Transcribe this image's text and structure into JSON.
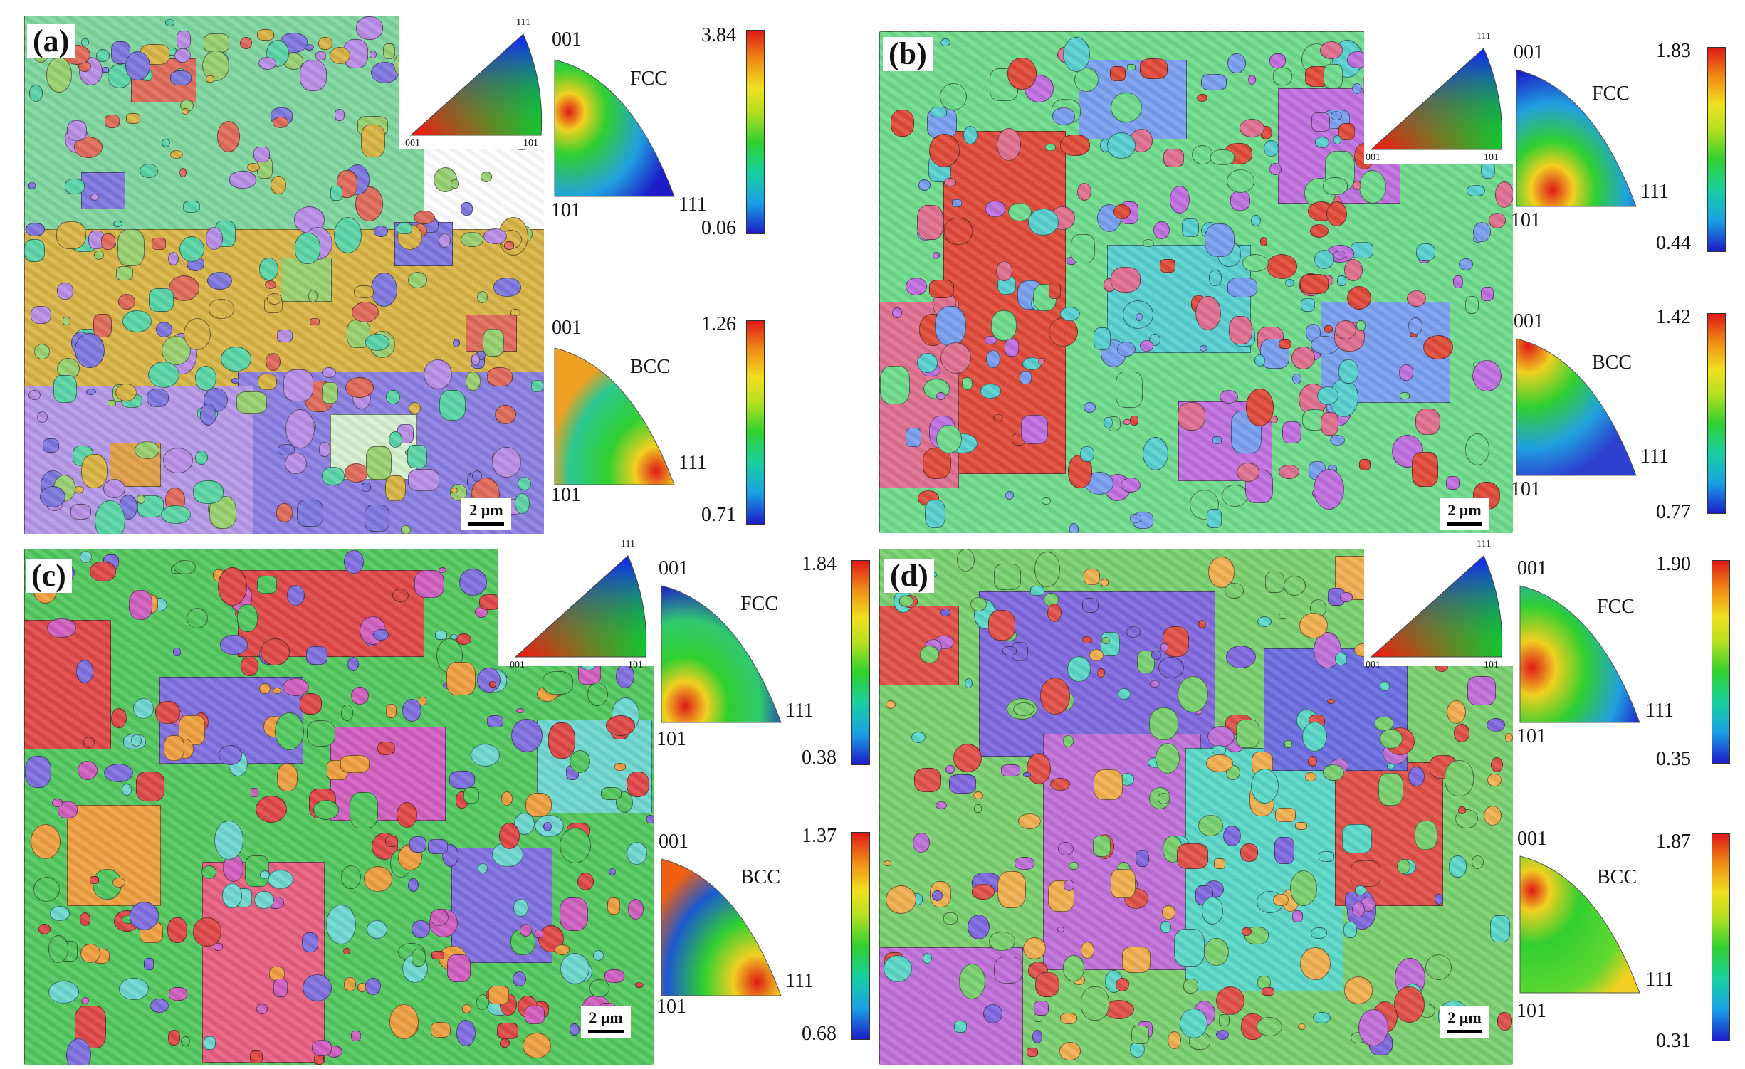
{
  "panels": [
    {
      "label": "(a)",
      "scale": "2 µm",
      "key": {
        "p001": "001",
        "p101": "101",
        "p111": "111"
      },
      "fcc": {
        "phase": "FCC",
        "p001": "001",
        "p101": "101",
        "p111": "111",
        "max": "3.84",
        "min": "0.06"
      },
      "bcc": {
        "phase": "BCC",
        "p001": "001",
        "p101": "101",
        "p111": "111",
        "max": "1.26",
        "min": "0.71"
      }
    },
    {
      "label": "(b)",
      "scale": "2 µm",
      "key": {
        "p001": "001",
        "p101": "101",
        "p111": "111"
      },
      "fcc": {
        "phase": "FCC",
        "p001": "001",
        "p101": "101",
        "p111": "111",
        "max": "1.83",
        "min": "0.44"
      },
      "bcc": {
        "phase": "BCC",
        "p001": "001",
        "p101": "101",
        "p111": "111",
        "max": "1.42",
        "min": "0.77"
      }
    },
    {
      "label": "(c)",
      "scale": "2 µm",
      "key": {
        "p001": "001",
        "p101": "101",
        "p111": "111"
      },
      "fcc": {
        "phase": "FCC",
        "p001": "001",
        "p101": "101",
        "p111": "111",
        "max": "1.84",
        "min": "0.38"
      },
      "bcc": {
        "phase": "BCC",
        "p001": "001",
        "p101": "101",
        "p111": "111",
        "max": "1.37",
        "min": "0.68"
      }
    },
    {
      "label": "(d)",
      "scale": "2 µm",
      "key": {
        "p001": "001",
        "p101": "101",
        "p111": "111"
      },
      "fcc": {
        "phase": "FCC",
        "p001": "001",
        "p101": "101",
        "p111": "111",
        "max": "1.90",
        "min": "0.35"
      },
      "bcc": {
        "phase": "BCC",
        "p001": "001",
        "p101": "101",
        "p111": "111",
        "max": "1.87",
        "min": "0.31"
      }
    }
  ],
  "colors": {
    "a": [
      "#d9b446",
      "#7f78e0",
      "#5bd6a8",
      "#e06a5a",
      "#9ad070",
      "#b98ee6"
    ],
    "b": [
      "#6fdc8c",
      "#e04a3a",
      "#7aa0f0",
      "#c070e0",
      "#58d0d0",
      "#e07090"
    ],
    "c": [
      "#52c860",
      "#e04848",
      "#8070e0",
      "#d060c0",
      "#6ed8d0",
      "#f0a040"
    ],
    "d": [
      "#7ad070",
      "#8068e0",
      "#5ad8c8",
      "#c070d8",
      "#e05048",
      "#f0b050"
    ]
  }
}
